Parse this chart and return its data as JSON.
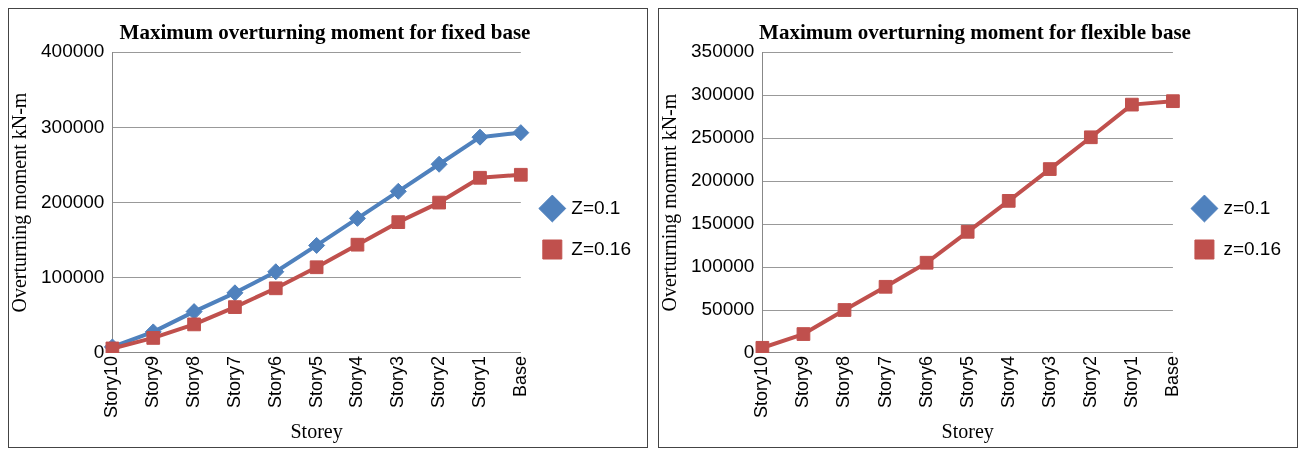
{
  "chart_data": [
    {
      "type": "line",
      "title": "Maximum overturning moment for fixed base",
      "xlabel": "Storey",
      "ylabel": "Overturning moment kN-m",
      "categories": [
        "Story10",
        "Story9",
        "Story8",
        "Story7",
        "Story6",
        "Story5",
        "Story4",
        "Story3",
        "Story2",
        "Story1",
        "Base"
      ],
      "ylim": [
        0,
        400000
      ],
      "yticks": [
        0,
        100000,
        200000,
        300000,
        400000
      ],
      "grid": "y",
      "legend": "right",
      "series": [
        {
          "name": "Z=0.1",
          "color": "#4f81bd",
          "marker": "diamond",
          "values": [
            8000,
            28000,
            55000,
            80000,
            108000,
            143000,
            179000,
            215000,
            251000,
            287000,
            293000
          ]
        },
        {
          "name": "Z=0.16",
          "color": "#c0504d",
          "marker": "square",
          "values": [
            6000,
            20000,
            38000,
            61000,
            86000,
            114000,
            144000,
            174000,
            200000,
            233000,
            237000
          ]
        }
      ]
    },
    {
      "type": "line",
      "title": "Maximum overturning moment for flexible base",
      "xlabel": "Storey",
      "ylabel": "Overturning momrnt kN-m",
      "categories": [
        "Story10",
        "Story9",
        "Story8",
        "Story7",
        "Story6",
        "Story5",
        "Story4",
        "Story3",
        "Story2",
        "Story1",
        "Base"
      ],
      "ylim": [
        0,
        350000
      ],
      "yticks": [
        0,
        50000,
        100000,
        150000,
        200000,
        250000,
        300000,
        350000
      ],
      "grid": "y",
      "legend": "right",
      "series": [
        {
          "name": "z=0.1",
          "color": "#4f81bd",
          "marker": "diamond",
          "values": [
            null,
            null,
            null,
            null,
            null,
            null,
            null,
            null,
            null,
            null,
            null
          ]
        },
        {
          "name": "z=0.16",
          "color": "#c0504d",
          "marker": "square",
          "values": [
            6000,
            22000,
            50000,
            77000,
            105000,
            141000,
            177000,
            214000,
            251000,
            289000,
            293000
          ]
        }
      ]
    }
  ]
}
